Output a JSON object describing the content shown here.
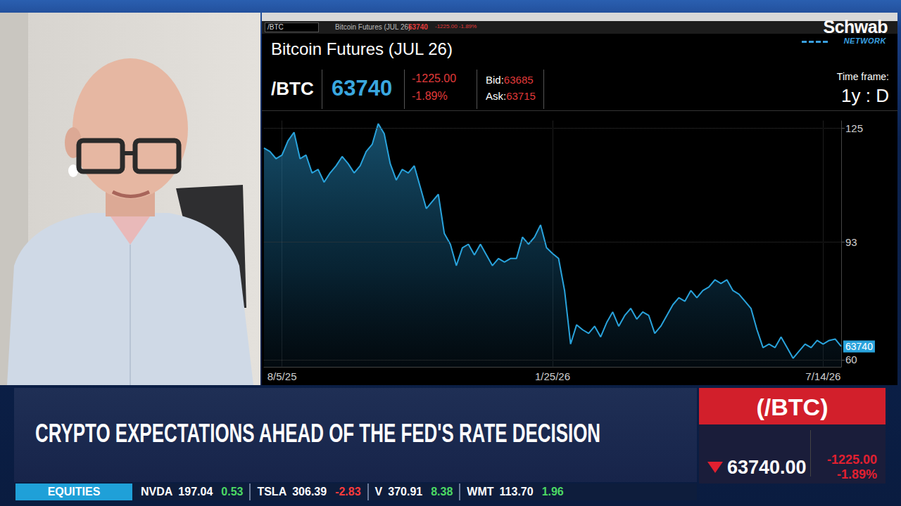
{
  "chart_data": {
    "type": "area",
    "title": "Bitcoin Futures (JUL 26)",
    "categories": [
      null,
      null,
      null,
      "8/5/25",
      null,
      null,
      null,
      null,
      null,
      null,
      null,
      null,
      null,
      null,
      null,
      null,
      null,
      null,
      null,
      null,
      null,
      null,
      null,
      null,
      null,
      null,
      null,
      null,
      null,
      null,
      null,
      null,
      null,
      null,
      null,
      null,
      null,
      null,
      null,
      null,
      null,
      null,
      null,
      null,
      null,
      null,
      null,
      null,
      "1/25/26",
      null,
      null,
      null,
      null,
      null,
      null,
      null,
      null,
      null,
      null,
      null,
      null,
      null,
      null,
      null,
      null,
      null,
      null,
      null,
      null,
      null,
      null,
      null,
      null,
      null,
      null,
      null,
      null,
      null,
      null,
      null,
      null,
      null,
      null,
      null,
      null,
      null,
      null,
      null,
      null,
      null,
      null,
      null,
      null,
      "7/14/26",
      null,
      null,
      null
    ],
    "values": [
      119.4,
      118.4,
      116.4,
      117.4,
      121.4,
      123.8,
      116.4,
      117.4,
      112.4,
      113.4,
      109.8,
      112.4,
      114.4,
      117,
      115,
      112.4,
      114.4,
      118.4,
      120.4,
      126.2,
      123.4,
      115,
      110.4,
      113.4,
      112.4,
      114.4,
      108.4,
      102.4,
      104.4,
      106.4,
      95.4,
      92.4,
      86.4,
      91.4,
      92.4,
      89.4,
      92.4,
      89.4,
      86.4,
      88.4,
      87.4,
      88.4,
      88.4,
      94.4,
      92.4,
      94.4,
      97.8,
      91.4,
      89.8,
      88.4,
      79.4,
      64.4,
      69.8,
      68.4,
      67.4,
      69.4,
      66.4,
      70.4,
      73.4,
      69.4,
      72.4,
      74.4,
      71.4,
      73.4,
      72.4,
      67.4,
      69.4,
      72.4,
      75.4,
      77.4,
      76.4,
      79.4,
      77.4,
      79.4,
      80.4,
      82.4,
      81.4,
      82.4,
      79.4,
      78.4,
      76.4,
      74.4,
      68.4,
      63.4,
      64.4,
      63.4,
      66.4,
      63.4,
      60.4,
      62.4,
      64.4,
      63.4,
      65.4,
      64.4,
      65.4,
      65.8,
      63.74
    ],
    "last_label": "63740",
    "color": "#29a3dc",
    "ylim": [
      58,
      127
    ],
    "yticks": [
      60,
      93,
      125
    ],
    "grid": true
  },
  "toolbar": {
    "symbol": "/BTC",
    "name": "Bitcoin Futures (JUL 26)",
    "last": "63740",
    "change": "-1225.00 -1.89%"
  },
  "logo": {
    "line1": "Schwab",
    "line2": "NETWORK"
  },
  "quote": {
    "symbol": "/BTC",
    "last": "63740",
    "change": "-1225.00",
    "change_pct": "-1.89%",
    "bid_label": "Bid:",
    "bid": "63685",
    "ask_label": "Ask:",
    "ask": "63715",
    "time_frame_label": "Time frame:",
    "time_frame": "1y : D"
  },
  "lower_third": {
    "headline": "CRYPTO EXPECTATIONS AHEAD OF THE FED'S RATE DECISION",
    "box_symbol": "(/BTC)",
    "box_price": "63740.00",
    "box_change": "-1225.00",
    "box_change_pct": "-1.89%"
  },
  "ticker": {
    "section": "EQUITIES",
    "items": [
      {
        "symbol": "NVDA",
        "price": "197.04",
        "change": "0.53"
      },
      {
        "symbol": "TSLA",
        "price": "306.39",
        "change": "-2.83"
      },
      {
        "symbol": "V",
        "price": "370.91",
        "change": "8.38"
      },
      {
        "symbol": "WMT",
        "price": "113.70",
        "change": "1.96"
      }
    ]
  }
}
